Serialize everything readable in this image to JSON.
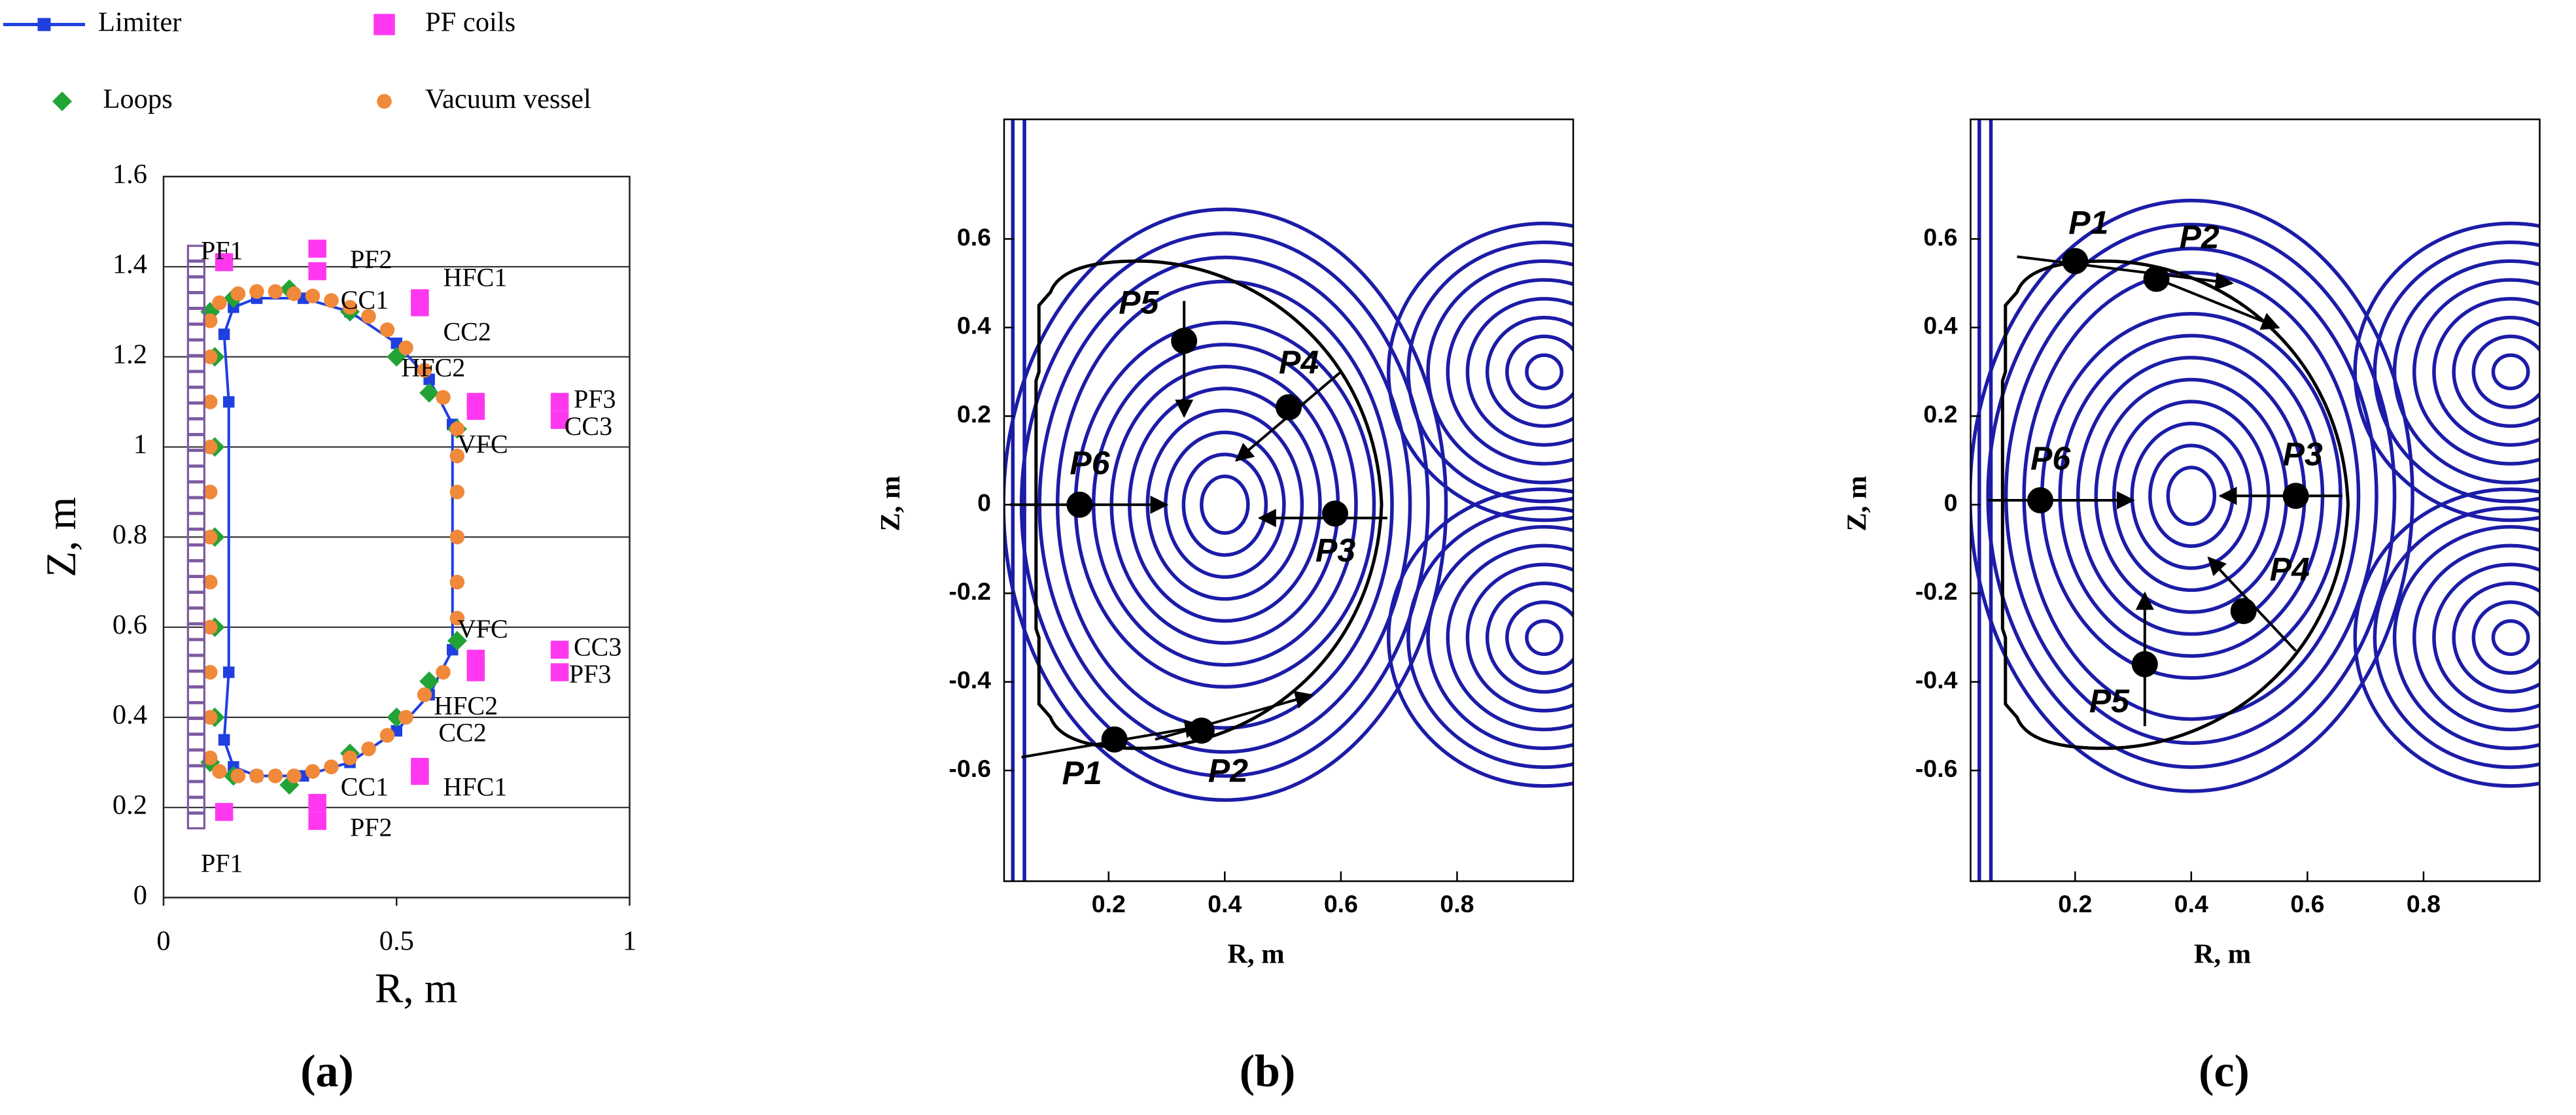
{
  "chart_data": [
    {
      "type": "scatter",
      "xlabel": "R, m",
      "ylabel": "Z, m",
      "panel_label": "(a)",
      "grid": true,
      "xlim": [
        0,
        1
      ],
      "ylim": [
        0,
        1.6
      ],
      "xticks": [
        0,
        0.5,
        1
      ],
      "yticks": [
        0,
        0.2,
        0.4,
        0.6,
        0.8,
        1,
        1.2,
        1.4,
        1.6
      ],
      "series": [
        {
          "name": "Limiter",
          "color": "#1f3fe0",
          "marker": "square",
          "line": true,
          "x": [
            0.13,
            0.14,
            0.14,
            0.13,
            0.15,
            0.2,
            0.3,
            0.4,
            0.5,
            0.57,
            0.62,
            0.62,
            0.57,
            0.5,
            0.4,
            0.3,
            0.2,
            0.15,
            0.13
          ],
          "values": [
            0.35,
            0.5,
            1.1,
            1.25,
            1.31,
            1.33,
            1.33,
            1.3,
            1.23,
            1.15,
            1.05,
            0.55,
            0.45,
            0.37,
            0.3,
            0.27,
            0.27,
            0.29,
            0.35
          ]
        },
        {
          "name": "Loops",
          "color": "#22a336",
          "marker": "diamond",
          "x": [
            0.1,
            0.15,
            0.27,
            0.4,
            0.5,
            0.57,
            0.63,
            0.63,
            0.57,
            0.5,
            0.4,
            0.27,
            0.15,
            0.1,
            0.11,
            0.11,
            0.11,
            0.11,
            0.11
          ],
          "values": [
            1.3,
            1.33,
            1.35,
            1.3,
            1.2,
            1.12,
            1.04,
            0.57,
            0.48,
            0.4,
            0.32,
            0.25,
            0.27,
            0.3,
            1.2,
            1.0,
            0.8,
            0.6,
            0.4
          ]
        },
        {
          "name": "Vacuum vessel",
          "color": "#f0893a",
          "marker": "circle",
          "x": [
            0.1,
            0.12,
            0.16,
            0.2,
            0.24,
            0.28,
            0.32,
            0.36,
            0.4,
            0.44,
            0.48,
            0.52,
            0.56,
            0.6,
            0.63,
            0.63,
            0.63,
            0.63,
            0.63,
            0.63,
            0.6,
            0.56,
            0.52,
            0.48,
            0.44,
            0.4,
            0.36,
            0.32,
            0.28,
            0.24,
            0.2,
            0.16,
            0.12,
            0.1,
            0.1,
            0.1,
            0.1,
            0.1,
            0.1,
            0.1,
            0.1,
            0.1,
            0.1
          ],
          "values": [
            1.28,
            1.32,
            1.34,
            1.345,
            1.345,
            1.34,
            1.335,
            1.325,
            1.31,
            1.29,
            1.26,
            1.22,
            1.17,
            1.11,
            1.04,
            0.98,
            0.9,
            0.8,
            0.7,
            0.62,
            0.5,
            0.45,
            0.4,
            0.36,
            0.33,
            0.31,
            0.29,
            0.28,
            0.27,
            0.27,
            0.27,
            0.27,
            0.28,
            0.31,
            1.2,
            1.1,
            1.0,
            0.9,
            0.8,
            0.7,
            0.6,
            0.5,
            0.4
          ]
        },
        {
          "name": "PF coils",
          "color": "#ff38f0",
          "marker": "square",
          "x": [
            0.13,
            0.33,
            0.33,
            0.55,
            0.55,
            0.67,
            0.67,
            0.85,
            0.85,
            0.85,
            0.85,
            0.67,
            0.67,
            0.55,
            0.55,
            0.33,
            0.33,
            0.13
          ],
          "values": [
            1.41,
            1.44,
            1.39,
            1.33,
            1.31,
            1.1,
            1.08,
            1.1,
            1.06,
            0.55,
            0.5,
            0.53,
            0.5,
            0.29,
            0.27,
            0.21,
            0.17,
            0.19
          ]
        },
        {
          "color": "#7e5aa0",
          "marker": "hollow",
          "x": [
            0.07,
            0.07,
            0.07,
            0.07,
            0.07,
            0.07,
            0.07,
            0.07,
            0.07,
            0.07,
            0.07,
            0.07,
            0.07,
            0.07,
            0.07,
            0.07,
            0.07,
            0.07,
            0.07,
            0.07,
            0.07,
            0.07,
            0.07,
            0.07,
            0.07,
            0.07,
            0.07,
            0.07,
            0.07,
            0.07,
            0.07,
            0.07,
            0.07,
            0.07,
            0.07,
            0.07,
            0.07
          ],
          "values": [
            0.17,
            0.205,
            0.24,
            0.275,
            0.31,
            0.345,
            0.38,
            0.415,
            0.45,
            0.485,
            0.52,
            0.555,
            0.59,
            0.625,
            0.66,
            0.695,
            0.73,
            0.765,
            0.8,
            0.835,
            0.87,
            0.905,
            0.94,
            0.975,
            1.01,
            1.045,
            1.08,
            1.115,
            1.15,
            1.185,
            1.22,
            1.255,
            1.29,
            1.325,
            1.36,
            1.395,
            1.43
          ]
        }
      ],
      "annotations": [
        {
          "text": "PF1",
          "x": 0.08,
          "y": 1.43
        },
        {
          "text": "PF2",
          "x": 0.4,
          "y": 1.41
        },
        {
          "text": "HFC1",
          "x": 0.6,
          "y": 1.37
        },
        {
          "text": "CC1",
          "x": 0.38,
          "y": 1.32
        },
        {
          "text": "CC2",
          "x": 0.6,
          "y": 1.25
        },
        {
          "text": "HFC2",
          "x": 0.51,
          "y": 1.17
        },
        {
          "text": "PF3",
          "x": 0.88,
          "y": 1.1
        },
        {
          "text": "CC3",
          "x": 0.86,
          "y": 1.04
        },
        {
          "text": "VFC",
          "x": 0.63,
          "y": 1.0
        },
        {
          "text": "VFC",
          "x": 0.63,
          "y": 0.59
        },
        {
          "text": "CC3",
          "x": 0.88,
          "y": 0.55
        },
        {
          "text": "PF3",
          "x": 0.87,
          "y": 0.49
        },
        {
          "text": "HFC2",
          "x": 0.58,
          "y": 0.42
        },
        {
          "text": "CC2",
          "x": 0.59,
          "y": 0.36
        },
        {
          "text": "HFC1",
          "x": 0.6,
          "y": 0.24
        },
        {
          "text": "CC1",
          "x": 0.38,
          "y": 0.24
        },
        {
          "text": "PF2",
          "x": 0.4,
          "y": 0.15
        },
        {
          "text": "PF1",
          "x": 0.08,
          "y": 0.07
        }
      ]
    },
    {
      "type": "scatter",
      "xlabel": "R, m",
      "ylabel": "Z, m",
      "panel_label": "(b)",
      "xlim": [
        0.02,
        1.0
      ],
      "ylim": [
        -0.85,
        0.87
      ],
      "xticks": [
        0.2,
        0.4,
        0.6,
        0.8
      ],
      "yticks": [
        -0.6,
        -0.4,
        -0.2,
        0,
        0.2,
        0.4,
        0.6
      ],
      "points": [
        {
          "label": "P1",
          "x": 0.21,
          "y": -0.53
        },
        {
          "label": "P2",
          "x": 0.36,
          "y": -0.51
        },
        {
          "label": "P3",
          "x": 0.59,
          "y": -0.02
        },
        {
          "label": "P4",
          "x": 0.51,
          "y": 0.22
        },
        {
          "label": "P5",
          "x": 0.33,
          "y": 0.37
        },
        {
          "label": "P6",
          "x": 0.15,
          "y": 0
        }
      ]
    },
    {
      "type": "scatter",
      "xlabel": "R, m",
      "ylabel": "Z, m",
      "panel_label": "(c)",
      "xlim": [
        0.02,
        1.0
      ],
      "ylim": [
        -0.85,
        0.87
      ],
      "xticks": [
        0.2,
        0.4,
        0.6,
        0.8
      ],
      "yticks": [
        -0.6,
        -0.4,
        -0.2,
        0,
        0.2,
        0.4,
        0.6
      ],
      "points": [
        {
          "label": "P1",
          "x": 0.2,
          "y": 0.55
        },
        {
          "label": "P2",
          "x": 0.34,
          "y": 0.51
        },
        {
          "label": "P3",
          "x": 0.58,
          "y": 0.02
        },
        {
          "label": "P4",
          "x": 0.49,
          "y": -0.24
        },
        {
          "label": "P5",
          "x": 0.32,
          "y": -0.36
        },
        {
          "label": "P6",
          "x": 0.14,
          "y": 0.01
        }
      ]
    }
  ]
}
